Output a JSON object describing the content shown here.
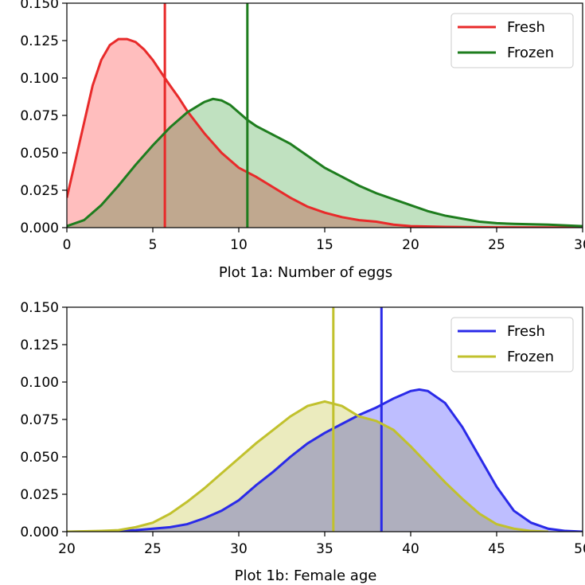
{
  "chart_data": [
    {
      "type": "area",
      "xlabel": "Plot 1a: Number of eggs",
      "ylabel": "",
      "xlim": [
        0,
        30
      ],
      "ylim": [
        0,
        0.15
      ],
      "x_ticks": [
        "0",
        "5",
        "10",
        "15",
        "20",
        "25",
        "30"
      ],
      "y_ticks": [
        "0.000",
        "0.025",
        "0.050",
        "0.075",
        "0.100",
        "0.125",
        "0.150"
      ],
      "legend_position": "top-right",
      "grid": false,
      "series": [
        {
          "name": "Fresh",
          "line_color": "#e82a2a",
          "fill_color": "#ffb3b3",
          "mean_line": 5.7,
          "points": [
            [
              0,
              0.02
            ],
            [
              0.5,
              0.045
            ],
            [
              1,
              0.07
            ],
            [
              1.5,
              0.095
            ],
            [
              2,
              0.112
            ],
            [
              2.5,
              0.122
            ],
            [
              3,
              0.126
            ],
            [
              3.5,
              0.126
            ],
            [
              4,
              0.124
            ],
            [
              4.5,
              0.119
            ],
            [
              5,
              0.112
            ],
            [
              5.7,
              0.1
            ],
            [
              6,
              0.095
            ],
            [
              6.5,
              0.087
            ],
            [
              7,
              0.078
            ],
            [
              8,
              0.063
            ],
            [
              9,
              0.05
            ],
            [
              10,
              0.04
            ],
            [
              11,
              0.034
            ],
            [
              12,
              0.027
            ],
            [
              13,
              0.02
            ],
            [
              14,
              0.014
            ],
            [
              15,
              0.01
            ],
            [
              16,
              0.007
            ],
            [
              17,
              0.005
            ],
            [
              18,
              0.004
            ],
            [
              19,
              0.002
            ],
            [
              20,
              0.001
            ],
            [
              22,
              0.0005
            ],
            [
              25,
              0.0002
            ],
            [
              28,
              0.0001
            ],
            [
              30,
              0.0
            ]
          ]
        },
        {
          "name": "Frozen",
          "line_color": "#1e7d1e",
          "fill_color": "#b5dcb5",
          "mean_line": 10.5,
          "points": [
            [
              0,
              0.001
            ],
            [
              1,
              0.005
            ],
            [
              2,
              0.015
            ],
            [
              3,
              0.028
            ],
            [
              4,
              0.042
            ],
            [
              5,
              0.055
            ],
            [
              6,
              0.067
            ],
            [
              7,
              0.077
            ],
            [
              8,
              0.084
            ],
            [
              8.5,
              0.086
            ],
            [
              9,
              0.085
            ],
            [
              9.5,
              0.082
            ],
            [
              10,
              0.077
            ],
            [
              10.5,
              0.072
            ],
            [
              11,
              0.068
            ],
            [
              12,
              0.062
            ],
            [
              13,
              0.056
            ],
            [
              14,
              0.048
            ],
            [
              15,
              0.04
            ],
            [
              16,
              0.034
            ],
            [
              17,
              0.028
            ],
            [
              18,
              0.023
            ],
            [
              19,
              0.019
            ],
            [
              20,
              0.015
            ],
            [
              21,
              0.011
            ],
            [
              22,
              0.008
            ],
            [
              23,
              0.006
            ],
            [
              24,
              0.004
            ],
            [
              25,
              0.003
            ],
            [
              26,
              0.0025
            ],
            [
              28,
              0.002
            ],
            [
              30,
              0.001
            ]
          ]
        }
      ]
    },
    {
      "type": "area",
      "xlabel": "Plot 1b: Female age",
      "ylabel": "",
      "xlim": [
        20,
        50
      ],
      "ylim": [
        0,
        0.15
      ],
      "x_ticks": [
        "20",
        "25",
        "30",
        "35",
        "40",
        "45",
        "50"
      ],
      "y_ticks": [
        "0.000",
        "0.025",
        "0.050",
        "0.075",
        "0.100",
        "0.125",
        "0.150"
      ],
      "legend_position": "top-right",
      "grid": false,
      "series": [
        {
          "name": "Fresh",
          "line_color": "#2a2ae8",
          "fill_color": "#b3b3ff",
          "mean_line": 38.3,
          "points": [
            [
              20,
              0.0
            ],
            [
              22,
              0.0002
            ],
            [
              24,
              0.001
            ],
            [
              25,
              0.002
            ],
            [
              26,
              0.003
            ],
            [
              27,
              0.005
            ],
            [
              28,
              0.009
            ],
            [
              29,
              0.014
            ],
            [
              30,
              0.021
            ],
            [
              31,
              0.031
            ],
            [
              32,
              0.04
            ],
            [
              33,
              0.05
            ],
            [
              34,
              0.059
            ],
            [
              35,
              0.066
            ],
            [
              36,
              0.072
            ],
            [
              37,
              0.078
            ],
            [
              38,
              0.083
            ],
            [
              39,
              0.089
            ],
            [
              40,
              0.094
            ],
            [
              40.5,
              0.095
            ],
            [
              41,
              0.094
            ],
            [
              42,
              0.086
            ],
            [
              43,
              0.07
            ],
            [
              44,
              0.05
            ],
            [
              45,
              0.03
            ],
            [
              46,
              0.014
            ],
            [
              47,
              0.006
            ],
            [
              48,
              0.002
            ],
            [
              49,
              0.0005
            ],
            [
              50,
              0.0
            ]
          ]
        },
        {
          "name": "Frozen",
          "line_color": "#c1c12d",
          "fill_color": "#e8e8b3",
          "mean_line": 35.5,
          "points": [
            [
              20,
              0.0
            ],
            [
              22,
              0.0005
            ],
            [
              23,
              0.001
            ],
            [
              24,
              0.003
            ],
            [
              25,
              0.006
            ],
            [
              26,
              0.012
            ],
            [
              27,
              0.02
            ],
            [
              28,
              0.029
            ],
            [
              29,
              0.039
            ],
            [
              30,
              0.049
            ],
            [
              31,
              0.059
            ],
            [
              32,
              0.068
            ],
            [
              33,
              0.077
            ],
            [
              34,
              0.084
            ],
            [
              35,
              0.087
            ],
            [
              36,
              0.084
            ],
            [
              37,
              0.077
            ],
            [
              38,
              0.074
            ],
            [
              39,
              0.068
            ],
            [
              40,
              0.057
            ],
            [
              41,
              0.045
            ],
            [
              42,
              0.033
            ],
            [
              43,
              0.022
            ],
            [
              44,
              0.012
            ],
            [
              45,
              0.005
            ],
            [
              46,
              0.002
            ],
            [
              47,
              0.0005
            ],
            [
              48,
              0.0
            ]
          ]
        }
      ]
    }
  ]
}
